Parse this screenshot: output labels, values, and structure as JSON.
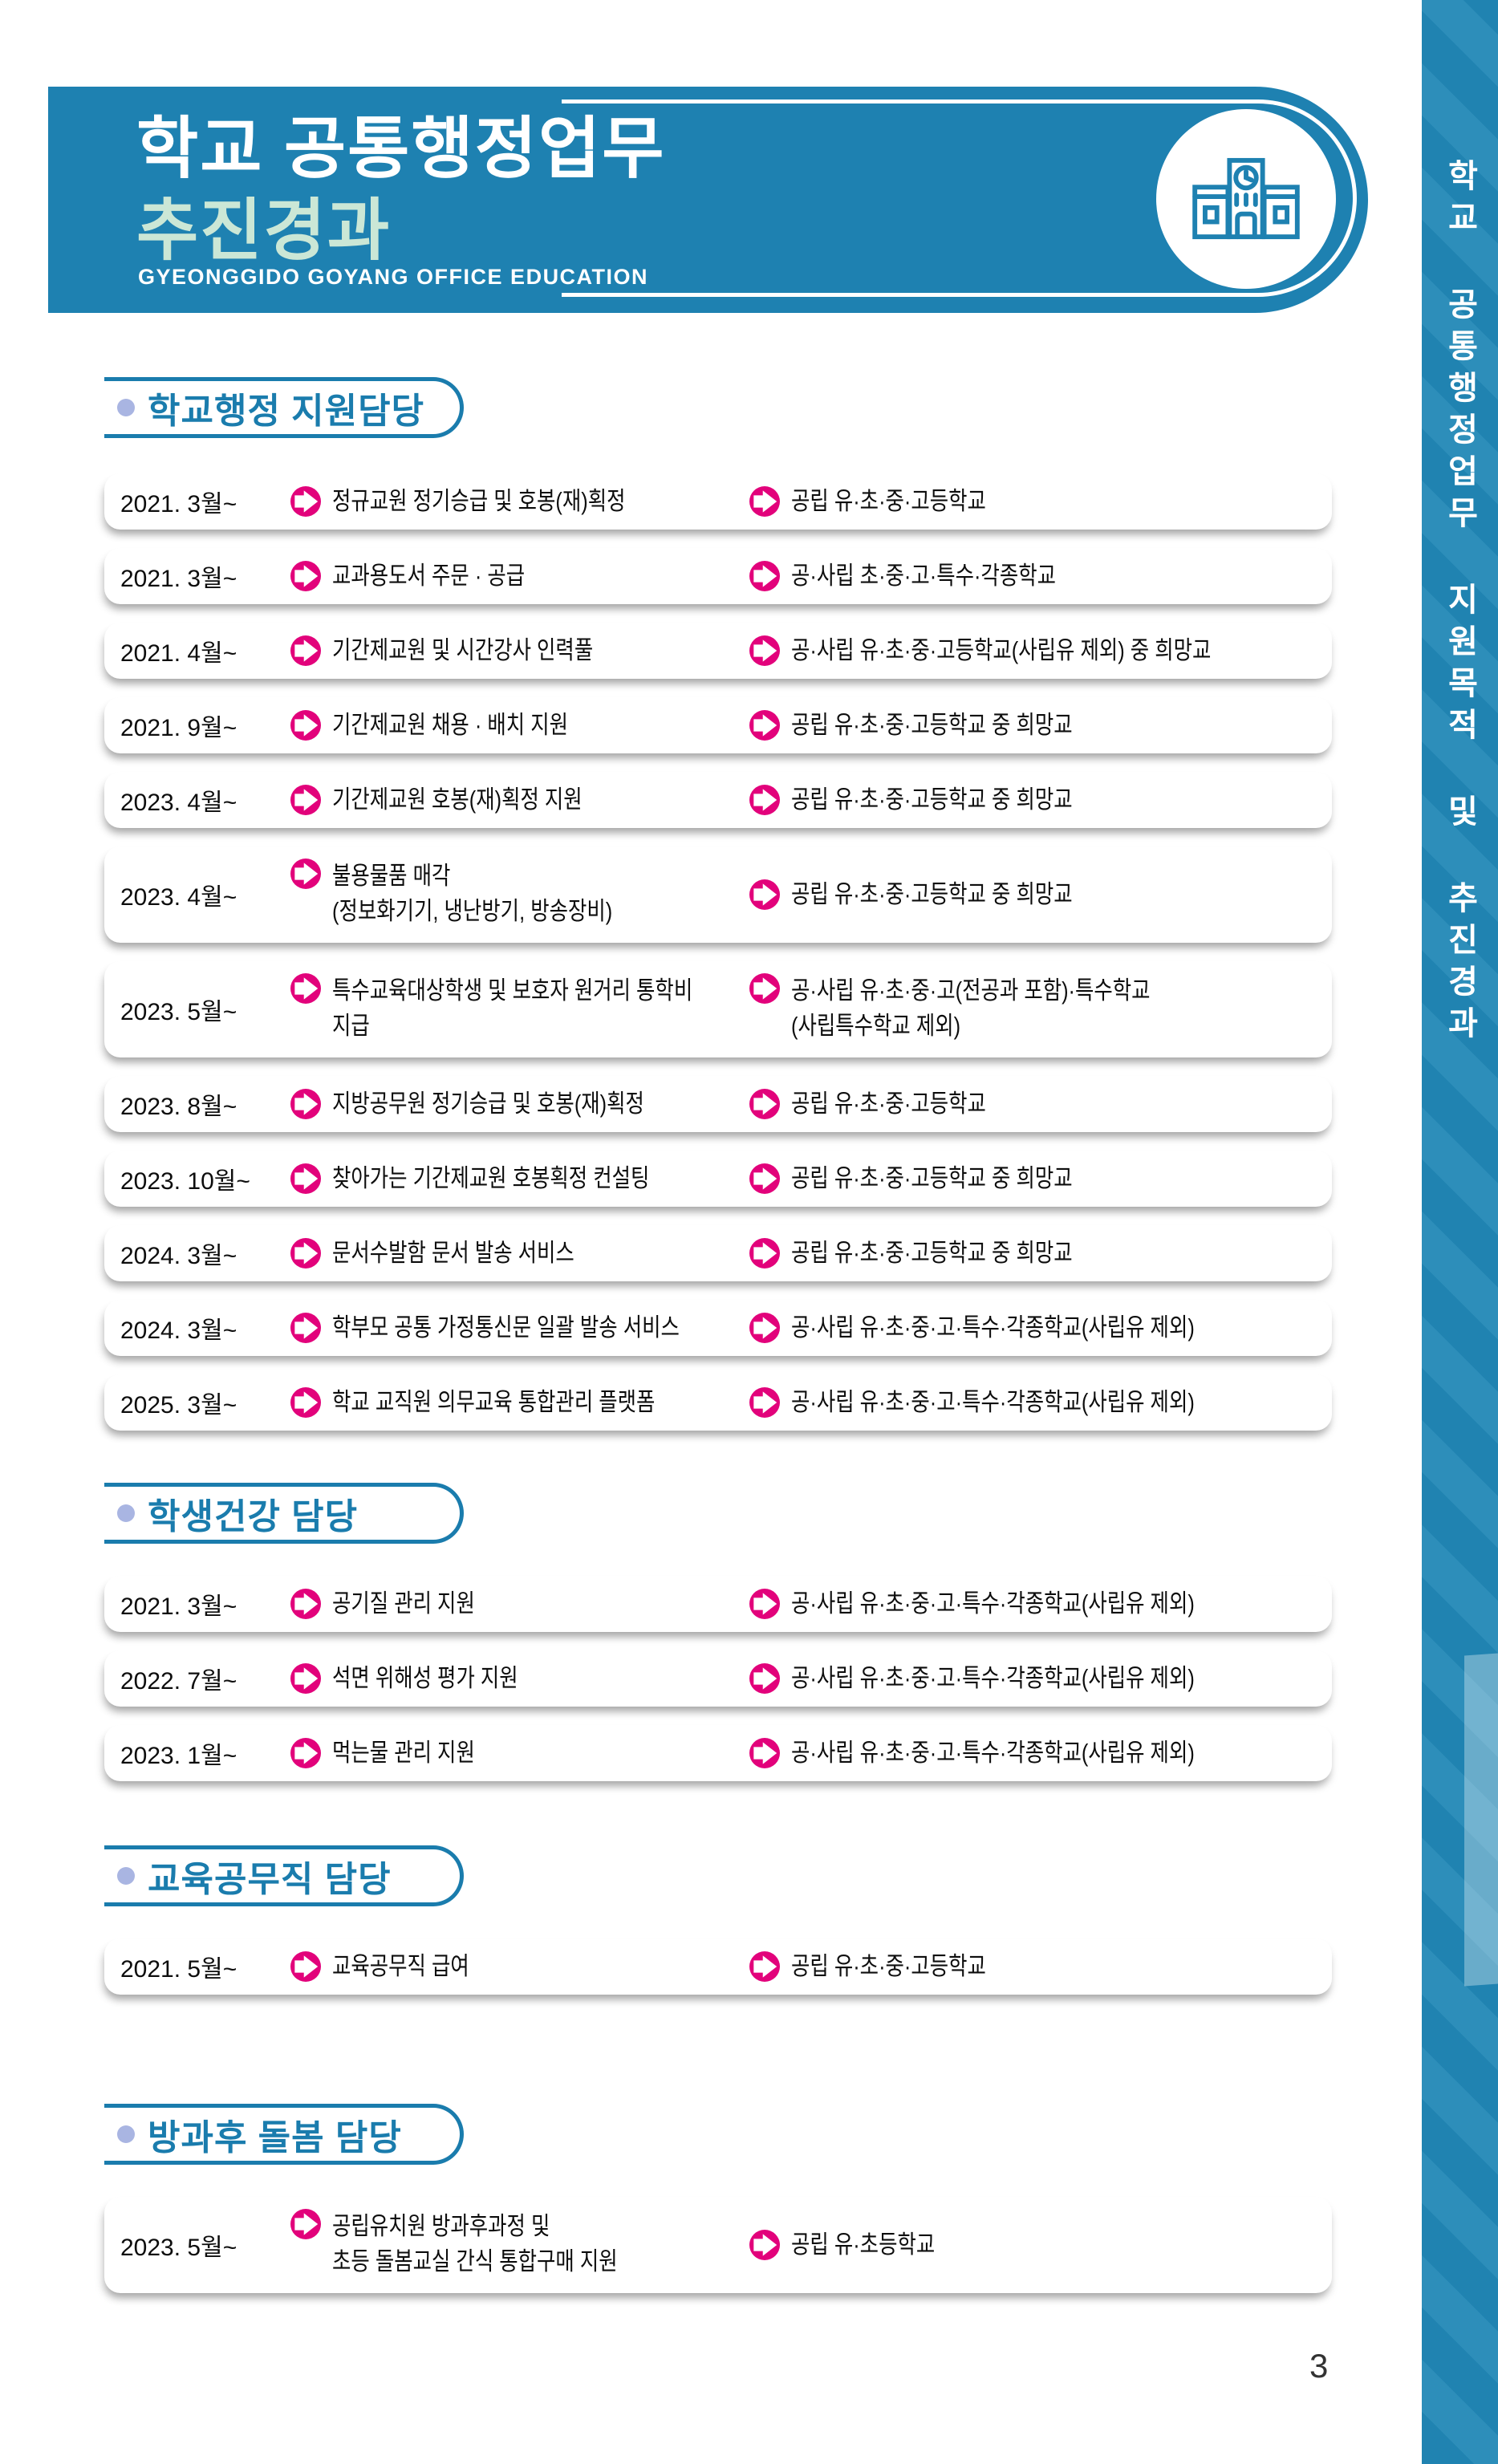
{
  "header": {
    "title_line1": "학교 공통행정업무",
    "title_line2": "추진경과",
    "subtitle": "GYEONGGIDO GOYANG OFFICE EDUCATION",
    "icon": "school-building-icon"
  },
  "sidebar": {
    "vertical_text": "학교 공통행정업무 지원목적 및 추진경과"
  },
  "colors": {
    "band_teal": "#1e81b1",
    "section_teal": "#1a7cad",
    "arrow_magenta": "#e2027b",
    "title_mint": "#cbe7d6",
    "bullet_periwinkle": "#a9b5e2",
    "sidebar_stripe_dark": "#2083b1",
    "sidebar_stripe_light": "#2d8eba"
  },
  "sections": [
    {
      "title": "학교행정 지원담당",
      "rows": [
        {
          "date": "2021. 3월~",
          "task": [
            "정규교원 정기승급 및 호봉(재)획정"
          ],
          "target": [
            "공립 유·초·중·고등학교"
          ]
        },
        {
          "date": "2021. 3월~",
          "task": [
            "교과용도서 주문 · 공급"
          ],
          "target": [
            "공·사립 초·중·고·특수·각종학교"
          ]
        },
        {
          "date": "2021. 4월~",
          "task": [
            "기간제교원 및 시간강사 인력풀"
          ],
          "target": [
            "공·사립 유·초·중·고등학교(사립유 제외) 중 희망교"
          ]
        },
        {
          "date": "2021. 9월~",
          "task": [
            "기간제교원 채용 · 배치 지원"
          ],
          "target": [
            "공립 유·초·중·고등학교 중 희망교"
          ]
        },
        {
          "date": "2023. 4월~",
          "task": [
            "기간제교원 호봉(재)획정 지원"
          ],
          "target": [
            "공립 유·초·중·고등학교 중 희망교"
          ]
        },
        {
          "date": "2023. 4월~",
          "task": [
            "불용물품 매각",
            "(정보화기기, 냉난방기, 방송장비)"
          ],
          "target": [
            "공립 유·초·중·고등학교 중 희망교"
          ]
        },
        {
          "date": "2023. 5월~",
          "task": [
            "특수교육대상학생 및 보호자 원거리 통학비",
            "지급"
          ],
          "target": [
            "공·사립 유·초·중·고(전공과 포함)·특수학교",
            "(사립특수학교 제외)"
          ]
        },
        {
          "date": "2023. 8월~",
          "task": [
            "지방공무원 정기승급 및 호봉(재)획정"
          ],
          "target": [
            "공립 유·초·중·고등학교"
          ]
        },
        {
          "date": "2023. 10월~",
          "task": [
            "찾아가는 기간제교원 호봉획정 컨설팅"
          ],
          "target": [
            "공립 유·초·중·고등학교 중 희망교"
          ]
        },
        {
          "date": "2024. 3월~",
          "task": [
            "문서수발함 문서 발송 서비스"
          ],
          "target": [
            "공립 유·초·중·고등학교 중 희망교"
          ]
        },
        {
          "date": "2024. 3월~",
          "task": [
            "학부모 공통 가정통신문 일괄 발송 서비스"
          ],
          "target": [
            "공·사립 유·초·중·고·특수·각종학교(사립유 제외)"
          ]
        },
        {
          "date": "2025. 3월~",
          "task": [
            "학교 교직원 의무교육 통합관리 플랫폼"
          ],
          "target": [
            "공·사립 유·초·중·고·특수·각종학교(사립유 제외)"
          ]
        }
      ]
    },
    {
      "title": "학생건강 담당",
      "rows": [
        {
          "date": "2021. 3월~",
          "task": [
            "공기질 관리 지원"
          ],
          "target": [
            "공·사립 유·초·중·고·특수·각종학교(사립유 제외)"
          ]
        },
        {
          "date": "2022. 7월~",
          "task": [
            "석면 위해성 평가 지원"
          ],
          "target": [
            "공·사립 유·초·중·고·특수·각종학교(사립유 제외)"
          ]
        },
        {
          "date": "2023. 1월~",
          "task": [
            "먹는물 관리 지원"
          ],
          "target": [
            "공·사립 유·초·중·고·특수·각종학교(사립유 제외)"
          ]
        }
      ]
    },
    {
      "title": "교육공무직 담당",
      "rows": [
        {
          "date": "2021. 5월~",
          "task": [
            "교육공무직 급여"
          ],
          "target": [
            "공립 유·초·중·고등학교"
          ]
        }
      ]
    },
    {
      "title": "방과후 돌봄 담당",
      "rows": [
        {
          "date": "2023. 5월~",
          "task": [
            "공립유치원 방과후과정 및",
            "초등 돌봄교실 간식 통합구매 지원"
          ],
          "target": [
            "공립 유·초등학교"
          ]
        }
      ]
    }
  ],
  "page_number": "3"
}
